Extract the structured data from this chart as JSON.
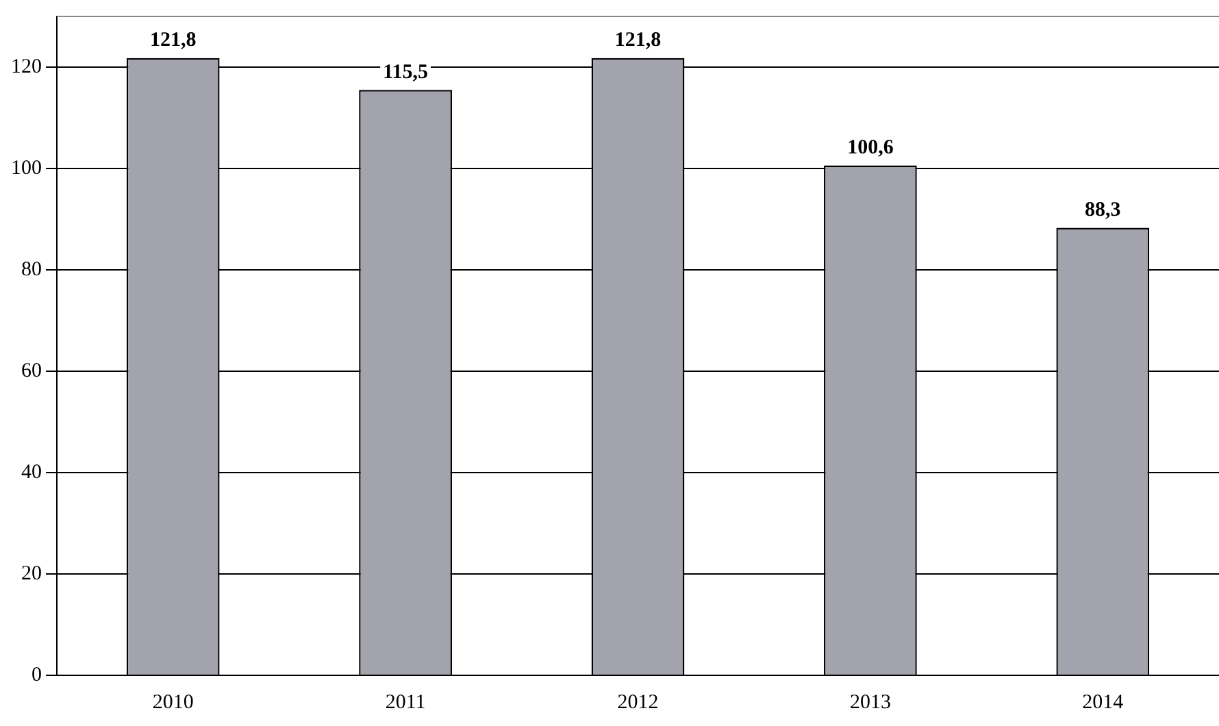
{
  "chart_data": {
    "type": "bar",
    "categories": [
      "2010",
      "2011",
      "2012",
      "2013",
      "2014"
    ],
    "values": [
      121.8,
      115.5,
      121.8,
      100.6,
      88.3
    ],
    "value_labels": [
      "121,8",
      "115,5",
      "121,8",
      "100,6",
      "88,3"
    ],
    "color": "#a3a3ad",
    "ylim": [
      0,
      130
    ],
    "yticks": [
      0,
      20,
      40,
      60,
      80,
      100,
      120
    ],
    "grid": "y",
    "legend": false
  }
}
